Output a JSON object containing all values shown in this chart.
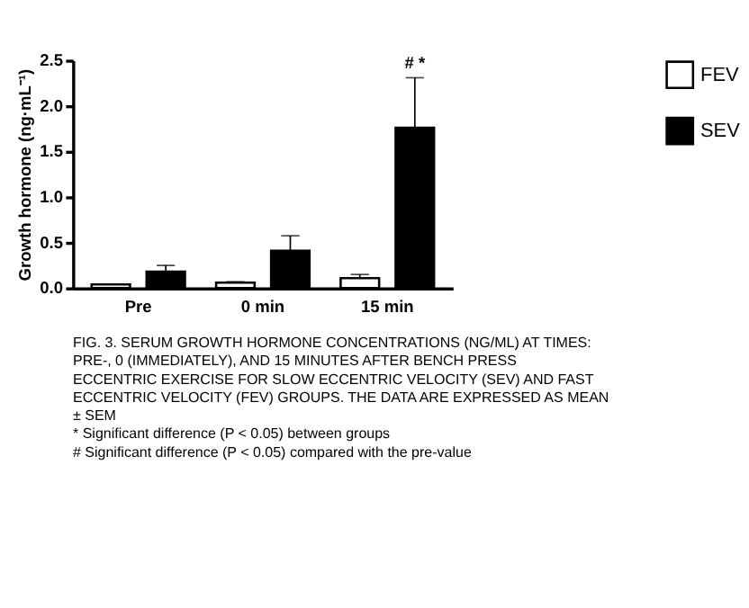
{
  "chart_data": {
    "type": "bar",
    "ylabel": "Growth hormone (ng·mL⁻¹)",
    "categories": [
      "Pre",
      "0 min",
      "15 min"
    ],
    "series": [
      {
        "name": "FEV",
        "color": "#ffffff",
        "values": [
          0.04,
          0.06,
          0.11
        ],
        "errors": [
          null,
          [
            0.06,
            0.07
          ],
          [
            0.11,
            0.15
          ]
        ]
      },
      {
        "name": "SEV",
        "color": "#000000",
        "values": [
          0.18,
          0.41,
          1.76
        ],
        "errors": [
          [
            0.18,
            0.25
          ],
          [
            0.41,
            0.575
          ],
          [
            1.76,
            2.31
          ]
        ]
      }
    ],
    "ylim": [
      0,
      2.5
    ],
    "yticks": [
      {
        "value": 0,
        "label": "0.0"
      },
      0.5,
      {
        "value": 1,
        "label": "1.0"
      },
      1.5,
      {
        "value": 2,
        "label": "2.0"
      },
      2.5
    ],
    "grid": false,
    "legend": "top right",
    "annotations": [
      "# *",
      "FIG. 3. SERUM GROWTH HORMONE CONCENTRATIONS (NG/ML) AT TIMES: PRE-, 0 (IMMEDIATELY), AND 15 MINUTES AFTER BENCH PRESS ECCENTRIC EXERCISE FOR SLOW ECCENTRIC VELOCITY (SEV) AND FAST ECCENTRIC VELOCITY (FEV) GROUPS. THE DATA ARE EXPRESSED AS MEAN ± SEM",
      "* Significant difference (P < 0.05) between groups",
      "# Significant difference (P < 0.05) compared with the pre-value"
    ]
  }
}
